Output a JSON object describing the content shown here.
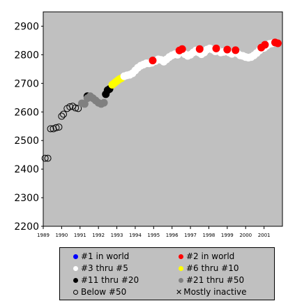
{
  "chart_data": {
    "type": "scatter",
    "title": "",
    "xlabel": "",
    "ylabel": "",
    "xlim": [
      1989,
      2002
    ],
    "ylim": [
      2200,
      2950
    ],
    "yticks": [
      2200,
      2300,
      2400,
      2500,
      2600,
      2700,
      2800,
      2900
    ],
    "xticks": [
      1989,
      1990,
      1991,
      1992,
      1993,
      1994,
      1995,
      1996,
      1997,
      1998,
      1999,
      2000,
      2001
    ],
    "grid": false,
    "background": "#c0c0c0",
    "legend_position": "bottom",
    "categories": [
      {
        "key": "top1",
        "label": "#1 in world",
        "color": "#0000ff",
        "style": "filled"
      },
      {
        "key": "top2",
        "label": "#2 in world",
        "color": "#ff0000",
        "style": "filled"
      },
      {
        "key": "top3_5",
        "label": "#3 thru #5",
        "color": "#ffffff",
        "style": "filled"
      },
      {
        "key": "top6_10",
        "label": "#6 thru #10",
        "color": "#ffff00",
        "style": "filled"
      },
      {
        "key": "top11_20",
        "label": "#11 thru #20",
        "color": "#000000",
        "style": "filled"
      },
      {
        "key": "top21_50",
        "label": "#21 thru #50",
        "color": "#808080",
        "style": "filled"
      },
      {
        "key": "below50",
        "label": "Below #50",
        "color": "#000000",
        "style": "hollow"
      },
      {
        "key": "inactive",
        "label": "Mostly inactive",
        "color": "#000000",
        "style": "x"
      }
    ],
    "series": [
      {
        "category": "below50",
        "points": [
          [
            1989.1,
            2438
          ],
          [
            1989.25,
            2438
          ],
          [
            1989.4,
            2541
          ],
          [
            1989.55,
            2541
          ],
          [
            1989.7,
            2545
          ],
          [
            1989.85,
            2547
          ],
          [
            1990.0,
            2585
          ],
          [
            1990.1,
            2592
          ],
          [
            1990.3,
            2612
          ],
          [
            1990.45,
            2618
          ],
          [
            1990.6,
            2620
          ],
          [
            1990.75,
            2614
          ],
          [
            1990.9,
            2612
          ]
        ]
      },
      {
        "category": "top11_20",
        "points": [
          [
            1991.4,
            2655
          ],
          [
            1992.4,
            2662
          ],
          [
            1992.5,
            2676
          ],
          [
            1992.6,
            2680
          ]
        ]
      },
      {
        "category": "top21_50",
        "points": [
          [
            1991.1,
            2630
          ],
          [
            1991.25,
            2628
          ],
          [
            1991.4,
            2648
          ],
          [
            1991.55,
            2655
          ],
          [
            1991.7,
            2648
          ],
          [
            1991.85,
            2640
          ],
          [
            1992.0,
            2632
          ],
          [
            1992.15,
            2628
          ],
          [
            1992.3,
            2632
          ]
        ]
      },
      {
        "category": "top6_10",
        "points": [
          [
            1992.75,
            2695
          ],
          [
            1992.85,
            2700
          ],
          [
            1992.95,
            2705
          ],
          [
            1993.05,
            2710
          ],
          [
            1993.15,
            2715
          ],
          [
            1993.25,
            2718
          ]
        ]
      },
      {
        "category": "top3_5",
        "points": [
          [
            1993.4,
            2725
          ],
          [
            1993.55,
            2728
          ],
          [
            1993.7,
            2730
          ],
          [
            1993.85,
            2735
          ],
          [
            1994.0,
            2745
          ],
          [
            1994.15,
            2755
          ],
          [
            1994.3,
            2762
          ],
          [
            1994.45,
            2766
          ],
          [
            1994.6,
            2770
          ],
          [
            1994.75,
            2770
          ],
          [
            1994.9,
            2772
          ],
          [
            1995.1,
            2778
          ],
          [
            1995.25,
            2784
          ],
          [
            1995.4,
            2782
          ],
          [
            1995.55,
            2776
          ],
          [
            1995.7,
            2784
          ],
          [
            1995.85,
            2792
          ],
          [
            1996.0,
            2798
          ],
          [
            1996.15,
            2802
          ],
          [
            1996.3,
            2800
          ],
          [
            1996.7,
            2802
          ],
          [
            1996.85,
            2796
          ],
          [
            1997.0,
            2800
          ],
          [
            1997.15,
            2808
          ],
          [
            1997.3,
            2815
          ],
          [
            1997.45,
            2808
          ],
          [
            1997.6,
            2802
          ],
          [
            1997.75,
            2808
          ],
          [
            1997.9,
            2818
          ],
          [
            1998.05,
            2822
          ],
          [
            1998.2,
            2818
          ],
          [
            1998.35,
            2812
          ],
          [
            1998.5,
            2815
          ],
          [
            1998.65,
            2808
          ],
          [
            1998.8,
            2810
          ],
          [
            1998.95,
            2812
          ],
          [
            1999.1,
            2808
          ],
          [
            1999.25,
            2803
          ],
          [
            1999.4,
            2808
          ],
          [
            1999.55,
            2805
          ],
          [
            1999.7,
            2798
          ],
          [
            1999.85,
            2796
          ],
          [
            2000.0,
            2792
          ],
          [
            2000.15,
            2790
          ],
          [
            2000.3,
            2792
          ],
          [
            2000.45,
            2798
          ],
          [
            2000.6,
            2806
          ],
          [
            2000.75,
            2815
          ],
          [
            2001.0,
            2824
          ],
          [
            2001.15,
            2832
          ],
          [
            2001.3,
            2838
          ],
          [
            2001.45,
            2840
          ]
        ]
      },
      {
        "category": "top2",
        "points": [
          [
            1994.95,
            2780
          ],
          [
            1996.4,
            2815
          ],
          [
            1996.55,
            2820
          ],
          [
            1997.5,
            2820
          ],
          [
            1998.4,
            2822
          ],
          [
            1999.0,
            2818
          ],
          [
            1999.45,
            2816
          ],
          [
            2000.85,
            2825
          ],
          [
            2001.05,
            2835
          ],
          [
            2001.6,
            2843
          ],
          [
            2001.75,
            2840
          ]
        ]
      }
    ]
  },
  "legend": {
    "items": [
      {
        "label": "#1 in world"
      },
      {
        "label": "#2 in world"
      },
      {
        "label": "#3 thru #5"
      },
      {
        "label": "#6 thru #10"
      },
      {
        "label": "#11 thru #20"
      },
      {
        "label": "#21 thru #50"
      },
      {
        "label": "Below #50"
      },
      {
        "label": "Mostly inactive"
      }
    ]
  }
}
